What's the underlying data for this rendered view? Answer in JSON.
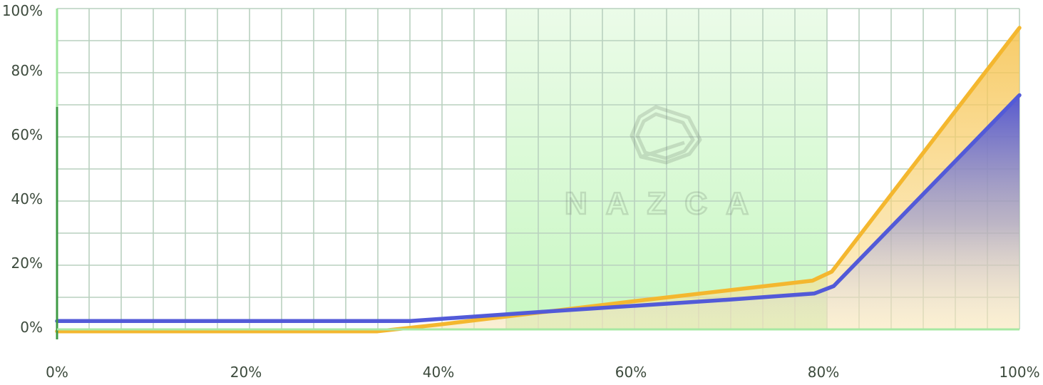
{
  "chart_data": {
    "type": "line",
    "x_ticks": [
      "0%",
      "20%",
      "40%",
      "60%",
      "80%",
      "100%"
    ],
    "y_ticks": [
      "0%",
      "20%",
      "40%",
      "60%",
      "80%",
      "100%"
    ],
    "xlim": [
      0,
      100
    ],
    "ylim": [
      0,
      100
    ],
    "grid": true,
    "highlight_band": {
      "x_start": 46.7,
      "x_end": 80,
      "color": "#c9f7c4"
    },
    "watermark": "NAZCA",
    "series": [
      {
        "color": "#f4b72f",
        "fill": "#f8d27a",
        "points": [
          [
            0,
            -0.6
          ],
          [
            33.3,
            -0.6
          ],
          [
            40,
            1.6
          ],
          [
            60,
            8.8
          ],
          [
            78.5,
            15.2
          ],
          [
            80.5,
            18
          ],
          [
            100,
            94
          ]
        ]
      },
      {
        "color": "#525ad8",
        "fill": "#4a4fd0",
        "points": [
          [
            0,
            2.6
          ],
          [
            36.7,
            2.6
          ],
          [
            50,
            5.4
          ],
          [
            70,
            9.3
          ],
          [
            78.7,
            11.2
          ],
          [
            80.7,
            13.5
          ],
          [
            100,
            73
          ]
        ]
      }
    ]
  }
}
